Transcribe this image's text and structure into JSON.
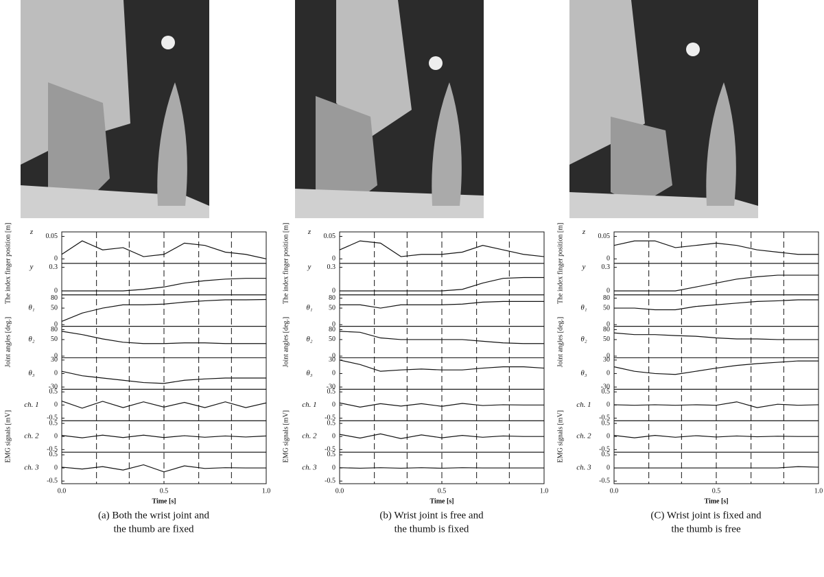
{
  "chart_data": [
    {
      "type": "line",
      "caption": [
        "(a) Both the wrist joint and",
        "the thumb are fixed"
      ],
      "xlabel": "Time [s]",
      "xlim": [
        0,
        1
      ],
      "xticks": [
        {
          "value": 0,
          "label": "0.0"
        },
        {
          "value": 0.5,
          "label": "0.5"
        },
        {
          "value": 1,
          "label": "1.0"
        }
      ],
      "marker_x": [
        0.17,
        0.33,
        0.5,
        0.67,
        0.83
      ],
      "x": [
        0,
        0.1,
        0.2,
        0.3,
        0.4,
        0.5,
        0.6,
        0.7,
        0.8,
        0.9,
        1.0
      ],
      "groups": [
        {
          "label": "The index finger position [m]",
          "series": [
            {
              "name": "z",
              "ylim": [
                -0.01,
                0.06
              ],
              "yticks": [
                0,
                0.05
              ],
              "values": [
                0.01,
                0.04,
                0.02,
                0.025,
                0.005,
                0.01,
                0.035,
                0.03,
                0.015,
                0.01,
                0.0
              ]
            },
            {
              "name": "y",
              "ylim": [
                -0.05,
                0.35
              ],
              "yticks": [
                0,
                0.3
              ],
              "values": [
                0,
                0,
                0,
                0,
                0.02,
                0.05,
                0.1,
                0.13,
                0.15,
                0.16,
                0.16
              ]
            }
          ]
        },
        {
          "label": "Joint angles [deg.]",
          "series": [
            {
              "name": "θ₁",
              "ylim": [
                -5,
                90
              ],
              "yticks": [
                0,
                50,
                80
              ],
              "values": [
                10,
                35,
                50,
                60,
                60,
                62,
                68,
                72,
                75,
                75,
                76
              ]
            },
            {
              "name": "θ₂",
              "ylim": [
                -5,
                90
              ],
              "yticks": [
                0,
                50,
                80
              ],
              "values": [
                75,
                65,
                52,
                42,
                38,
                38,
                40,
                40,
                38,
                38,
                38
              ]
            },
            {
              "name": "θ₃",
              "ylim": [
                -35,
                35
              ],
              "yticks": [
                -30,
                0,
                30
              ],
              "values": [
                5,
                -5,
                -10,
                -15,
                -20,
                -22,
                -15,
                -12,
                -10,
                -10,
                -10
              ]
            }
          ]
        },
        {
          "label": "EMG signals [mV]",
          "series": [
            {
              "name": "ch. 1",
              "ylim": [
                -0.6,
                0.6
              ],
              "yticks": [
                -0.5,
                0,
                0.5
              ],
              "values": [
                0.15,
                -0.12,
                0.14,
                -0.1,
                0.12,
                -0.08,
                0.1,
                -0.1,
                0.12,
                -0.1,
                0.08
              ]
            },
            {
              "name": "ch. 2",
              "ylim": [
                -0.6,
                0.6
              ],
              "yticks": [
                -0.5,
                0,
                0.5
              ],
              "values": [
                0.04,
                -0.05,
                0.05,
                -0.04,
                0.05,
                -0.04,
                0.03,
                -0.03,
                0.02,
                -0.02,
                0.02
              ]
            },
            {
              "name": "ch. 3",
              "ylim": [
                -0.6,
                0.6
              ],
              "yticks": [
                -0.5,
                0,
                0.5
              ],
              "values": [
                0.03,
                -0.04,
                0.05,
                -0.08,
                0.12,
                -0.15,
                0.08,
                -0.02,
                0.01,
                0,
                0
              ]
            }
          ]
        }
      ]
    },
    {
      "type": "line",
      "caption": [
        "(b) Wrist joint is free and",
        "the thumb is fixed"
      ],
      "xlabel": "Time [s]",
      "xlim": [
        0,
        1
      ],
      "xticks": [
        {
          "value": 0,
          "label": "0.0"
        },
        {
          "value": 0.5,
          "label": "0.5"
        },
        {
          "value": 1,
          "label": "1.0"
        }
      ],
      "marker_x": [
        0.17,
        0.33,
        0.5,
        0.67,
        0.83
      ],
      "x": [
        0,
        0.1,
        0.2,
        0.3,
        0.4,
        0.5,
        0.6,
        0.7,
        0.8,
        0.9,
        1.0
      ],
      "groups": [
        {
          "label": "The index finger position [m]",
          "series": [
            {
              "name": "z",
              "ylim": [
                -0.01,
                0.06
              ],
              "yticks": [
                0,
                0.05
              ],
              "values": [
                0.02,
                0.04,
                0.035,
                0.005,
                0.01,
                0.01,
                0.015,
                0.03,
                0.02,
                0.01,
                0.005
              ]
            },
            {
              "name": "y",
              "ylim": [
                -0.05,
                0.35
              ],
              "yticks": [
                0,
                0.3
              ],
              "values": [
                0,
                0,
                0,
                0,
                0,
                0,
                0.02,
                0.1,
                0.16,
                0.17,
                0.17
              ]
            }
          ]
        },
        {
          "label": "Joint angles [deg.]",
          "series": [
            {
              "name": "θ₁",
              "ylim": [
                -5,
                90
              ],
              "yticks": [
                0,
                50,
                80
              ],
              "values": [
                60,
                60,
                50,
                60,
                60,
                60,
                62,
                68,
                70,
                70,
                70
              ]
            },
            {
              "name": "θ₂",
              "ylim": [
                -5,
                90
              ],
              "yticks": [
                0,
                50,
                80
              ],
              "values": [
                75,
                72,
                55,
                50,
                50,
                50,
                50,
                45,
                40,
                38,
                38
              ]
            },
            {
              "name": "θ₃",
              "ylim": [
                -35,
                35
              ],
              "yticks": [
                -30,
                0,
                30
              ],
              "values": [
                30,
                20,
                5,
                8,
                10,
                8,
                8,
                12,
                15,
                15,
                12
              ]
            }
          ]
        },
        {
          "label": "EMG signals [mV]",
          "series": [
            {
              "name": "ch. 1",
              "ylim": [
                -0.6,
                0.6
              ],
              "yticks": [
                -0.5,
                0,
                0.5
              ],
              "values": [
                0.08,
                -0.08,
                0.05,
                -0.04,
                0.05,
                -0.05,
                0.06,
                -0.02,
                0.01,
                0,
                0
              ]
            },
            {
              "name": "ch. 2",
              "ylim": [
                -0.6,
                0.6
              ],
              "yticks": [
                -0.5,
                0,
                0.5
              ],
              "values": [
                0.08,
                -0.06,
                0.1,
                -0.08,
                0.06,
                -0.05,
                0.04,
                -0.03,
                0.02,
                0,
                0
              ]
            },
            {
              "name": "ch. 3",
              "ylim": [
                -0.6,
                0.6
              ],
              "yticks": [
                -0.5,
                0,
                0.5
              ],
              "values": [
                0.01,
                -0.01,
                0.01,
                -0.01,
                0.01,
                -0.01,
                0.01,
                0,
                0,
                0,
                0
              ]
            }
          ]
        }
      ]
    },
    {
      "type": "line",
      "caption": [
        "(C) Wrist joint is fixed and",
        "the thumb is free"
      ],
      "xlabel": "Time [s]",
      "xlim": [
        0,
        1
      ],
      "xticks": [
        {
          "value": 0,
          "label": "0.0"
        },
        {
          "value": 0.5,
          "label": "0.5"
        },
        {
          "value": 1,
          "label": "1.0"
        }
      ],
      "marker_x": [
        0.17,
        0.33,
        0.5,
        0.67,
        0.83
      ],
      "x": [
        0,
        0.1,
        0.2,
        0.3,
        0.4,
        0.5,
        0.6,
        0.7,
        0.8,
        0.9,
        1.0
      ],
      "groups": [
        {
          "label": "The index finger position [m]",
          "series": [
            {
              "name": "z",
              "ylim": [
                -0.01,
                0.06
              ],
              "yticks": [
                0,
                0.05
              ],
              "values": [
                0.03,
                0.04,
                0.04,
                0.025,
                0.03,
                0.035,
                0.03,
                0.02,
                0.015,
                0.01,
                0.01
              ]
            },
            {
              "name": "y",
              "ylim": [
                -0.05,
                0.35
              ],
              "yticks": [
                0,
                0.3
              ],
              "values": [
                0,
                0,
                0,
                0,
                0.05,
                0.1,
                0.15,
                0.18,
                0.2,
                0.2,
                0.2
              ]
            }
          ]
        },
        {
          "label": "Joint angles [deg.]",
          "series": [
            {
              "name": "θ₁",
              "ylim": [
                -5,
                90
              ],
              "yticks": [
                0,
                50,
                80
              ],
              "values": [
                50,
                50,
                45,
                45,
                55,
                60,
                65,
                70,
                72,
                75,
                75
              ]
            },
            {
              "name": "θ₂",
              "ylim": [
                -5,
                90
              ],
              "yticks": [
                0,
                50,
                80
              ],
              "values": [
                70,
                65,
                65,
                62,
                60,
                55,
                52,
                52,
                50,
                50,
                50
              ]
            },
            {
              "name": "θ₃",
              "ylim": [
                -35,
                35
              ],
              "yticks": [
                -30,
                0,
                30
              ],
              "values": [
                15,
                5,
                0,
                -2,
                5,
                12,
                18,
                22,
                25,
                28,
                28
              ]
            }
          ]
        },
        {
          "label": "EMG signals [mV]",
          "series": [
            {
              "name": "ch. 1",
              "ylim": [
                -0.6,
                0.6
              ],
              "yticks": [
                -0.5,
                0,
                0.5
              ],
              "values": [
                0.01,
                -0.01,
                0.01,
                -0.01,
                0.01,
                -0.01,
                0.12,
                -0.1,
                0.03,
                -0.01,
                0.01
              ]
            },
            {
              "name": "ch. 2",
              "ylim": [
                -0.6,
                0.6
              ],
              "yticks": [
                -0.5,
                0,
                0.5
              ],
              "values": [
                0.04,
                -0.05,
                0.04,
                -0.03,
                0.03,
                -0.02,
                0.02,
                -0.01,
                0.01,
                0,
                0
              ]
            },
            {
              "name": "ch. 3",
              "ylim": [
                -0.6,
                0.6
              ],
              "yticks": [
                -0.5,
                0,
                0.5
              ],
              "values": [
                0,
                0,
                0,
                0,
                0,
                0,
                0,
                0,
                0,
                0.05,
                0.03
              ]
            }
          ]
        }
      ]
    }
  ]
}
